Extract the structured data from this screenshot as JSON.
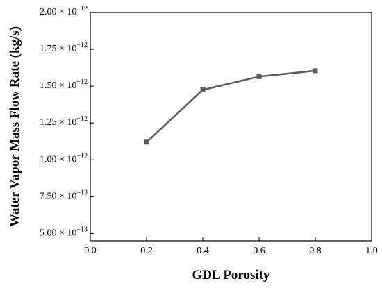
{
  "chart_data": {
    "type": "line",
    "xlabel": "GDL Porosity",
    "ylabel": "Water Vapor Mass Flow Rate (kg/s)",
    "xlim": [
      0.0,
      1.0
    ],
    "ylim": [
      4.5e-13,
      2e-12
    ],
    "x_ticks": [
      {
        "value": 0.0,
        "label": "0.0"
      },
      {
        "value": 0.2,
        "label": "0.2"
      },
      {
        "value": 0.4,
        "label": "0.4"
      },
      {
        "value": 0.6,
        "label": "0.6"
      },
      {
        "value": 0.8,
        "label": "0.8"
      },
      {
        "value": 1.0,
        "label": "1.0"
      }
    ],
    "y_ticks": [
      {
        "value": 5e-13,
        "mantissa": "5.00",
        "exponent": "-13"
      },
      {
        "value": 7.5e-13,
        "mantissa": "7.50",
        "exponent": "-13"
      },
      {
        "value": 1e-12,
        "mantissa": "1.00",
        "exponent": "-12"
      },
      {
        "value": 1.25e-12,
        "mantissa": "1.25",
        "exponent": "-12"
      },
      {
        "value": 1.5e-12,
        "mantissa": "1.50",
        "exponent": "-12"
      },
      {
        "value": 1.75e-12,
        "mantissa": "1.75",
        "exponent": "-12"
      },
      {
        "value": 2e-12,
        "mantissa": "2.00",
        "exponent": "-12"
      }
    ],
    "series": [
      {
        "x": [
          0.2,
          0.4,
          0.6,
          0.8
        ],
        "y": [
          1.12e-12,
          1.475e-12,
          1.565e-12,
          1.605e-12
        ],
        "color": "#595959",
        "marker": "square"
      }
    ],
    "grid": false,
    "legend": "none"
  }
}
